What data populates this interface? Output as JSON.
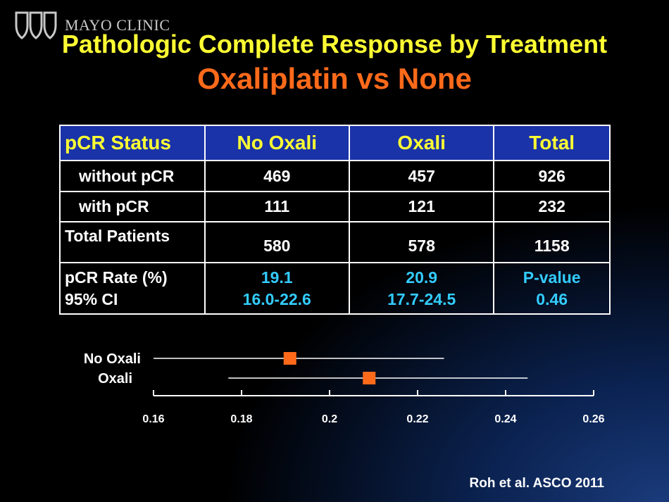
{
  "header": {
    "logo_text": "MAYO CLINIC",
    "title": "Pathologic Complete Response by Treatment",
    "subtitle": "Oxaliplatin vs None"
  },
  "table": {
    "headers": [
      "pCR Status",
      "No Oxali",
      "Oxali",
      "Total"
    ],
    "rows": [
      {
        "label": "without pCR",
        "values": [
          "469",
          "457",
          "926"
        ]
      },
      {
        "label": "with pCR",
        "values": [
          "111",
          "121",
          "232"
        ]
      },
      {
        "label": "Total Patients",
        "values": [
          "580",
          "578",
          "1158"
        ]
      }
    ],
    "rate_row": {
      "label_line1": "pCR Rate (%)",
      "label_line2": "95% CI",
      "no_oxali_rate": "19.1",
      "no_oxali_ci": "16.0-22.6",
      "oxali_rate": "20.9",
      "oxali_ci": "17.7-24.5",
      "pvalue_label": "P-value",
      "pvalue": "0.46"
    }
  },
  "chart_data": {
    "type": "scatter",
    "xlim": [
      0.16,
      0.26
    ],
    "xticks": [
      "0.16",
      "0.18",
      "0.2",
      "0.22",
      "0.24",
      "0.26"
    ],
    "series": [
      {
        "name": "No Oxali",
        "estimate": 0.191,
        "ci_low": 0.16,
        "ci_high": 0.226
      },
      {
        "name": "Oxali",
        "estimate": 0.209,
        "ci_low": 0.177,
        "ci_high": 0.245
      }
    ],
    "colors": {
      "marker": "#ff6a1a",
      "line": "#ffffff"
    }
  },
  "citation": "Roh et al. ASCO 2011",
  "colors": {
    "title": "#ffff33",
    "subtitle": "#ff6a1a",
    "header_bg": "#1a33a8",
    "highlight": "#33ccff"
  }
}
